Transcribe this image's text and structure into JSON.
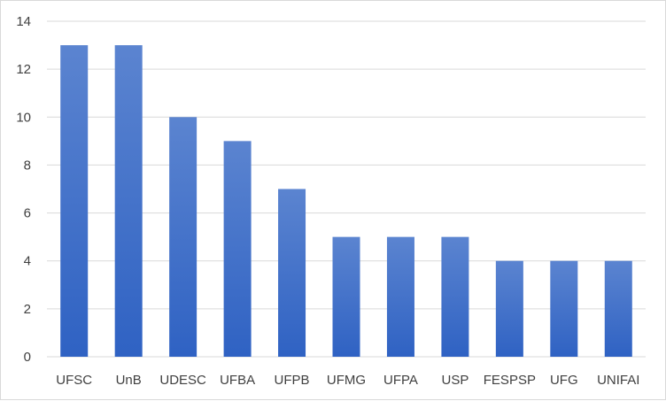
{
  "chart_data": {
    "type": "bar",
    "categories": [
      "UFSC",
      "UnB",
      "UDESC",
      "UFBA",
      "UFPB",
      "UFMG",
      "UFPA",
      "USP",
      "FESPSP",
      "UFG",
      "UNIFAI"
    ],
    "values": [
      13,
      13,
      10,
      9,
      7,
      5,
      5,
      5,
      4,
      4,
      4
    ],
    "title": "",
    "xlabel": "",
    "ylabel": "",
    "ylim": [
      0,
      14
    ],
    "yticks": [
      0,
      2,
      4,
      6,
      8,
      10,
      12,
      14
    ],
    "grid": "horizontal",
    "legend": "none",
    "colors": {
      "bar_top": "#5b84d0",
      "bar_bottom": "#2f62c3",
      "grid": "#d9d9d9",
      "text": "#404040"
    }
  }
}
